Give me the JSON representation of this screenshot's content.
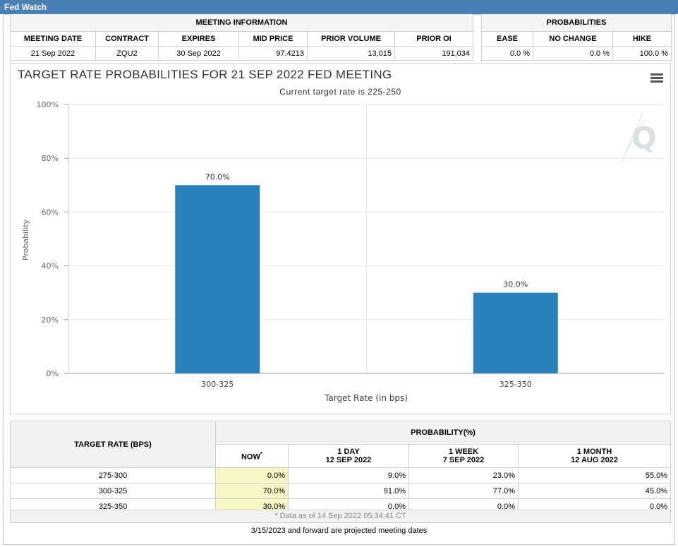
{
  "window": {
    "title": "Fed Watch"
  },
  "meeting_info": {
    "section_title": "MEETING INFORMATION",
    "headers": [
      "MEETING DATE",
      "CONTRACT",
      "EXPIRES",
      "MID PRICE",
      "PRIOR VOLUME",
      "PRIOR OI"
    ],
    "values": [
      "21 Sep 2022",
      "ZQU2",
      "30 Sep 2022",
      "97.4213",
      "13,015",
      "191,034"
    ]
  },
  "probabilities": {
    "section_title": "PROBABILITIES",
    "headers": [
      "EASE",
      "NO CHANGE",
      "HIKE"
    ],
    "values": [
      "0.0 %",
      "0.0 %",
      "100.0 %"
    ]
  },
  "chart_data": {
    "type": "bar",
    "title": "TARGET RATE PROBABILITIES FOR 21 SEP 2022 FED MEETING",
    "subtitle": "Current target rate is 225-250",
    "categories": [
      "300-325",
      "325-350"
    ],
    "values": [
      70.0,
      30.0
    ],
    "data_labels": [
      "70.0%",
      "30.0%"
    ],
    "xlabel": "Target Rate (in bps)",
    "ylabel": "Probability",
    "ylim": [
      0,
      100
    ],
    "yticks": [
      "0%",
      "20%",
      "40%",
      "60%",
      "80%",
      "100%"
    ],
    "grid": true,
    "bar_color": "#2b7fba"
  },
  "prob_table": {
    "left_header": "TARGET RATE (BPS)",
    "group_header": "PROBABILITY(%)",
    "columns": [
      {
        "line1": "NOW",
        "line2": ""
      },
      {
        "line1": "1 DAY",
        "line2": "12 SEP 2022"
      },
      {
        "line1": "1 WEEK",
        "line2": "7 SEP 2022"
      },
      {
        "line1": "1 MONTH",
        "line2": "12 AUG 2022"
      }
    ],
    "now_marker": "*",
    "rows": [
      {
        "rate": "275-300",
        "values": [
          "0.0%",
          "9.0%",
          "23.0%",
          "55.0%"
        ]
      },
      {
        "rate": "300-325",
        "values": [
          "70.0%",
          "91.0%",
          "77.0%",
          "45.0%"
        ]
      },
      {
        "rate": "325-350",
        "values": [
          "30.0%",
          "0.0%",
          "0.0%",
          "0.0%"
        ]
      }
    ],
    "footnote": "* Data as of 14 Sep 2022 05:34:41 CT",
    "projected_note": "3/15/2023 and forward are projected meeting dates"
  },
  "colors": {
    "titlebar": "#4a7fb5",
    "now_highlight": "#f7f7c8"
  }
}
